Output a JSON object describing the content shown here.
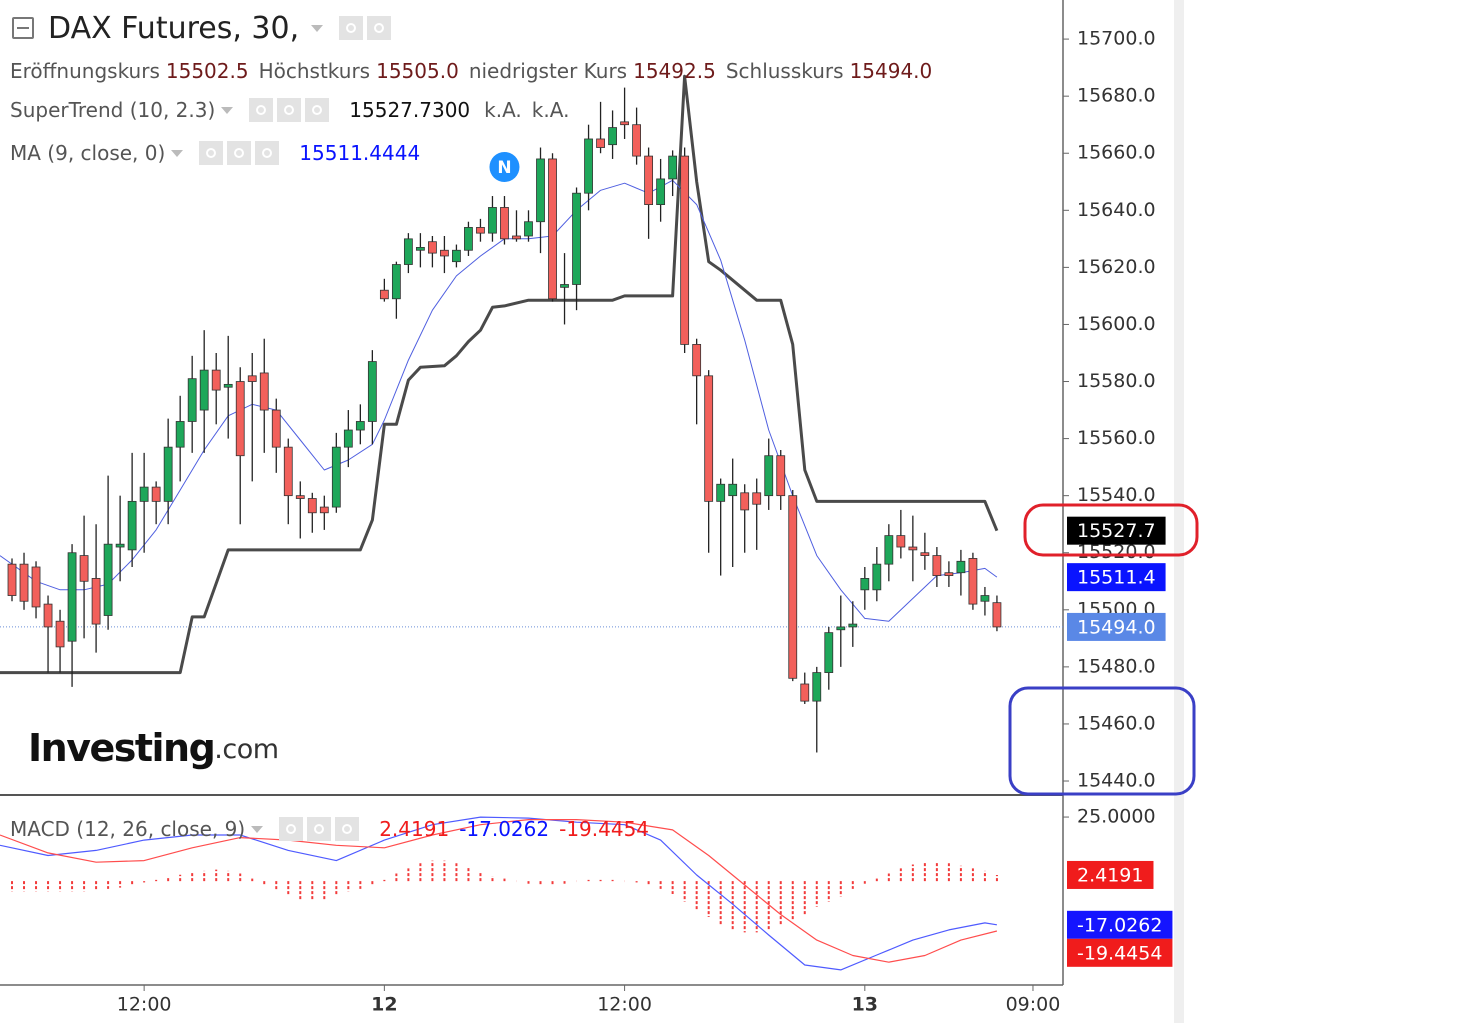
{
  "chart_data": [
    {
      "type": "candlestick",
      "title": "DAX Futures, 30,",
      "ohlc_legend": [
        {
          "name": "Eröffnungskurs",
          "value": "15502.5"
        },
        {
          "name": "Höchstkurs",
          "value": "15505.0"
        },
        {
          "name": "niedrigster Kurs",
          "value": "15492.5"
        },
        {
          "name": "Schlusskurs",
          "value": "15494.0"
        }
      ],
      "x": [
        1,
        2,
        3,
        4,
        5,
        6,
        7,
        8,
        9,
        10,
        11,
        12,
        13,
        14,
        15,
        16,
        17,
        18,
        19,
        20,
        21,
        22,
        23,
        24,
        25,
        26,
        27,
        28,
        29,
        30,
        31,
        32,
        33,
        34,
        35,
        36,
        37,
        38,
        39,
        40,
        41,
        42,
        43,
        44,
        45,
        46,
        47,
        48,
        49,
        50,
        51,
        52,
        53,
        54,
        55,
        56,
        57,
        58,
        59,
        60,
        61,
        62,
        63,
        64,
        65,
        66,
        67,
        68,
        69,
        70,
        71,
        72,
        73,
        74,
        75,
        76,
        77,
        78,
        79,
        80,
        81,
        82,
        83
      ],
      "open": [
        15516,
        15516,
        15515,
        15502,
        15496,
        15489,
        15519,
        15511,
        15498,
        15522,
        15521,
        15538,
        15543,
        15538,
        15557,
        15566,
        15570,
        15584,
        15578,
        15580,
        15582,
        15583,
        15570,
        15557,
        15540,
        15539,
        15536,
        15536,
        15557,
        15563,
        15566,
        15612,
        15609,
        15621,
        15626,
        15629,
        15626,
        15622,
        15626,
        15634,
        15632,
        15641,
        15631,
        15631,
        15636,
        15658,
        15613,
        15614,
        15646,
        15665,
        15663,
        15671,
        15670,
        15659,
        15642,
        15651,
        15659,
        15593,
        15582,
        15538,
        15540,
        15541,
        15541,
        15540,
        15554,
        15540,
        15474,
        15468,
        15478,
        15493,
        15494,
        15507,
        15507,
        15516,
        15526,
        15522,
        15520,
        15519,
        15513,
        15513,
        15518,
        15503,
        15502.5
      ],
      "high": [
        15518,
        15520,
        15517,
        15505,
        15500,
        15523,
        15533,
        15530,
        15547,
        15540,
        15555,
        15555,
        15545,
        15567,
        15575,
        15589,
        15598,
        15590,
        15596,
        15585,
        15590,
        15595,
        15574,
        15560,
        15545,
        15541,
        15540,
        15562,
        15570,
        15572,
        15591,
        15616,
        15622,
        15632,
        15632,
        15631,
        15631,
        15628,
        15636,
        15637,
        15645,
        15645,
        15640,
        15640,
        15662,
        15660,
        15625,
        15648,
        15670,
        15678,
        15675,
        15683,
        15676,
        15662,
        15658,
        15661,
        15662,
        15595,
        15584,
        15546,
        15553,
        15544,
        15546,
        15560,
        15556,
        15542,
        15478,
        15480,
        15494,
        15505,
        15503,
        15515,
        15522,
        15530,
        15535,
        15533,
        15527,
        15522,
        15517,
        15521,
        15520,
        15508,
        15505
      ],
      "low": [
        15503,
        15500,
        15497,
        15478,
        15478,
        15473,
        15490,
        15485,
        15493,
        15510,
        15515,
        15520,
        15530,
        15530,
        15545,
        15555,
        15555,
        15565,
        15560,
        15530,
        15545,
        15555,
        15548,
        15530,
        15525,
        15527,
        15528,
        15534,
        15550,
        15558,
        15558,
        15608,
        15602,
        15618,
        15620,
        15620,
        15618,
        15620,
        15624,
        15629,
        15629,
        15628,
        15629,
        15629,
        15625,
        15608,
        15600,
        15605,
        15640,
        15660,
        15658,
        15665,
        15656,
        15630,
        15636,
        15645,
        15590,
        15565,
        15520,
        15512,
        15515,
        15520,
        15521,
        15535,
        15535,
        15475,
        15467,
        15450,
        15472,
        15480,
        15487,
        15500,
        15503,
        15510,
        15518,
        15510,
        15514,
        15508,
        15508,
        15505,
        15500,
        15498,
        15492.5
      ],
      "close": [
        15505,
        15503,
        15501,
        15494,
        15487,
        15520,
        15510,
        15495,
        15523,
        15523,
        15538,
        15543,
        15538,
        15557,
        15566,
        15581,
        15584,
        15577,
        15579,
        15554,
        15580,
        15570,
        15557,
        15540,
        15539,
        15534,
        15534,
        15557,
        15563,
        15566,
        15587,
        15609,
        15621,
        15630,
        15627,
        15625,
        15624,
        15626,
        15634,
        15632,
        15641,
        15630,
        15630,
        15636,
        15658,
        15609,
        15614,
        15646,
        15665,
        15662,
        15669,
        15670,
        15659,
        15642,
        15651,
        15659,
        15593,
        15582,
        15538,
        15544,
        15544,
        15535,
        15537,
        15554,
        15540,
        15476,
        15468,
        15478,
        15492,
        15494,
        15495,
        15511,
        15516,
        15526,
        15522,
        15521,
        15519,
        15512,
        15512,
        15517,
        15502,
        15505,
        15494
      ],
      "up_color": "#1ea75a",
      "down_color": "#f2605b",
      "xlim": [
        0,
        88.5
      ],
      "xticks": [
        {
          "value": 12,
          "label": "12:00"
        },
        {
          "value": 32,
          "label": "12"
        },
        {
          "value": 52,
          "label": "12:00"
        },
        {
          "value": 72,
          "label": "13"
        },
        {
          "value": 86,
          "label": "09:00"
        }
      ],
      "ylim": [
        15435.1,
        15713.7
      ],
      "yticks": [
        {
          "value": 15440,
          "label": "15440.0"
        },
        {
          "value": 15460,
          "label": "15460.0"
        },
        {
          "value": 15480,
          "label": "15480.0"
        },
        {
          "value": 15500,
          "label": "15500.0"
        },
        {
          "value": 15520,
          "label": "15520.0"
        },
        {
          "value": 15540,
          "label": "15540.0"
        },
        {
          "value": 15560,
          "label": "15560.0"
        },
        {
          "value": 15580,
          "label": "15580.0"
        },
        {
          "value": 15600,
          "label": "15600.0"
        },
        {
          "value": 15620,
          "label": "15620.0"
        },
        {
          "value": 15640,
          "label": "15640.0"
        },
        {
          "value": 15660,
          "label": "15660.0"
        },
        {
          "value": 15680,
          "label": "15680.0"
        },
        {
          "value": 15700,
          "label": "15700.0"
        }
      ],
      "indicators": [
        {
          "name": "SuperTrend (10, 2.3)",
          "value_text": "15527.7300",
          "extra": [
            "k.A.",
            "k.A."
          ],
          "color": "#4a4a4a",
          "width": 3,
          "x": [
            0,
            15,
            16,
            17,
            19,
            30,
            31,
            32,
            33,
            34,
            35,
            37,
            38,
            39,
            40,
            41,
            42,
            44,
            51,
            52,
            56,
            57,
            58,
            59,
            60,
            63,
            65,
            66,
            67,
            68,
            82,
            83
          ],
          "values": [
            15478,
            15478,
            15497.5,
            15497.5,
            15521,
            15521,
            15531.5,
            15565,
            15565,
            15580.5,
            15585,
            15585.5,
            15589,
            15594,
            15598,
            15606,
            15606.5,
            15608.5,
            15608.5,
            15610,
            15610,
            15687,
            15650,
            15622,
            15619,
            15608.5,
            15608.5,
            15593,
            15549,
            15538,
            15538,
            15527.73
          ]
        },
        {
          "name": "MA (9, close, 0)",
          "value_text": "15511.4444",
          "color": "#4f5fe0",
          "width": 1,
          "x": [
            0,
            3,
            5,
            7,
            9,
            11,
            13,
            15,
            17,
            19,
            21,
            23,
            25,
            27,
            29,
            31,
            32,
            34,
            36,
            38,
            40,
            42,
            44,
            46,
            48,
            50,
            52,
            54,
            56,
            58,
            60,
            62,
            64,
            66,
            68,
            70,
            72,
            74,
            76,
            78,
            80,
            82,
            83
          ],
          "values": [
            15519,
            15510,
            15507,
            15507,
            15509,
            15517.5,
            15528,
            15542,
            15556,
            15568,
            15572,
            15570,
            15559.5,
            15549,
            15552.5,
            15558,
            15566.5,
            15587.5,
            15605,
            15617,
            15624,
            15630,
            15630,
            15631,
            15640,
            15647,
            15649.5,
            15646,
            15650.5,
            15642,
            15622.5,
            15594.5,
            15563,
            15540,
            15519,
            15507,
            15497,
            15496,
            15504,
            15512,
            15513,
            15514.5,
            15511.4444
          ]
        }
      ],
      "badges": [
        {
          "value": 15527.73,
          "label": "15527.7",
          "color": "#000000"
        },
        {
          "value": 15511.4444,
          "label": "15511.4",
          "color": "#0a14ff"
        },
        {
          "value": 15494,
          "label": "15494.0",
          "color": "#5a88e6"
        }
      ],
      "watermark": [
        "Investing",
        ".com"
      ],
      "marker": {
        "x": 42,
        "text": "N"
      }
    },
    {
      "type": "macd",
      "title": "MACD (12, 26, close, 9)",
      "legend_values": [
        "2.4191",
        "-17.0262",
        "-19.4454"
      ],
      "x": [
        1,
        2,
        3,
        4,
        5,
        6,
        7,
        8,
        9,
        10,
        11,
        12,
        13,
        14,
        15,
        16,
        17,
        18,
        19,
        20,
        21,
        22,
        23,
        24,
        25,
        26,
        27,
        28,
        29,
        30,
        31,
        32,
        33,
        34,
        35,
        36,
        37,
        38,
        39,
        40,
        41,
        42,
        43,
        44,
        45,
        46,
        47,
        48,
        49,
        50,
        51,
        52,
        53,
        54,
        55,
        56,
        57,
        58,
        59,
        60,
        61,
        62,
        63,
        64,
        65,
        66,
        67,
        68,
        69,
        70,
        71,
        72,
        73,
        74,
        75,
        76,
        77,
        78,
        79,
        80,
        81,
        82,
        83
      ],
      "histogram": [
        -4,
        -4,
        -4,
        -4,
        -4,
        -4,
        -4,
        -3.5,
        -3,
        -2.5,
        -1.5,
        -0.5,
        0.5,
        1.5,
        2.5,
        3.5,
        4,
        4.5,
        4,
        3,
        1,
        -1.5,
        -3.5,
        -5.5,
        -7,
        -7.5,
        -7,
        -5.5,
        -4,
        -3,
        -1.5,
        0.5,
        3,
        5,
        7,
        8,
        8,
        7,
        5.5,
        3.5,
        2,
        1,
        0,
        -1,
        -1.5,
        -1.5,
        -1,
        0,
        0.5,
        0.5,
        0.5,
        0,
        -0.5,
        -1.5,
        -3,
        -5,
        -8,
        -11,
        -14,
        -17,
        -19,
        -20,
        -20,
        -19,
        -17,
        -15,
        -13,
        -10,
        -8,
        -6,
        -3,
        -1,
        1,
        3,
        5,
        6.5,
        7.5,
        7.5,
        7,
        6,
        5,
        4,
        2.4191
      ],
      "histogram_color": "#f23b3b",
      "series": [
        {
          "color": "#4f5bff",
          "x": [
            0,
            4,
            8,
            12,
            16,
            20,
            24,
            28,
            32,
            36,
            40,
            44,
            48,
            52,
            55,
            58,
            61,
            64,
            67,
            70,
            73,
            76,
            79,
            82,
            83
          ],
          "values": [
            14,
            10,
            12,
            16,
            18,
            18,
            12,
            8,
            16,
            22,
            25,
            24.6,
            23,
            22,
            16,
            2.4,
            -9,
            -21,
            -32.7,
            -34.6,
            -28.8,
            -23,
            -19,
            -16.3,
            -17.0262
          ]
        },
        {
          "color": "#ff4d4d",
          "x": [
            0,
            4,
            8,
            12,
            16,
            20,
            24,
            28,
            32,
            36,
            40,
            44,
            48,
            52,
            56,
            59,
            62,
            65,
            68,
            71,
            74,
            77,
            80,
            83
          ],
          "values": [
            18,
            11,
            7.4,
            8,
            13,
            17,
            16,
            14,
            13,
            18,
            22,
            24,
            24,
            23,
            20,
            10,
            -1.5,
            -13,
            -23,
            -29,
            -31.6,
            -29,
            -23,
            -19.4454
          ]
        }
      ],
      "ylim": [
        -40.5,
        33.6
      ],
      "yticks": [
        {
          "value": 25,
          "label": "25.0000"
        }
      ],
      "badges": [
        {
          "value": 2.4191,
          "label": "2.4191",
          "color": "#f01c1c"
        },
        {
          "value": -17.0262,
          "label": "-17.0262",
          "color": "#1515ff"
        },
        {
          "value": -19.4454,
          "label": "-19.4454",
          "color": "#f01c1c"
        }
      ]
    }
  ]
}
